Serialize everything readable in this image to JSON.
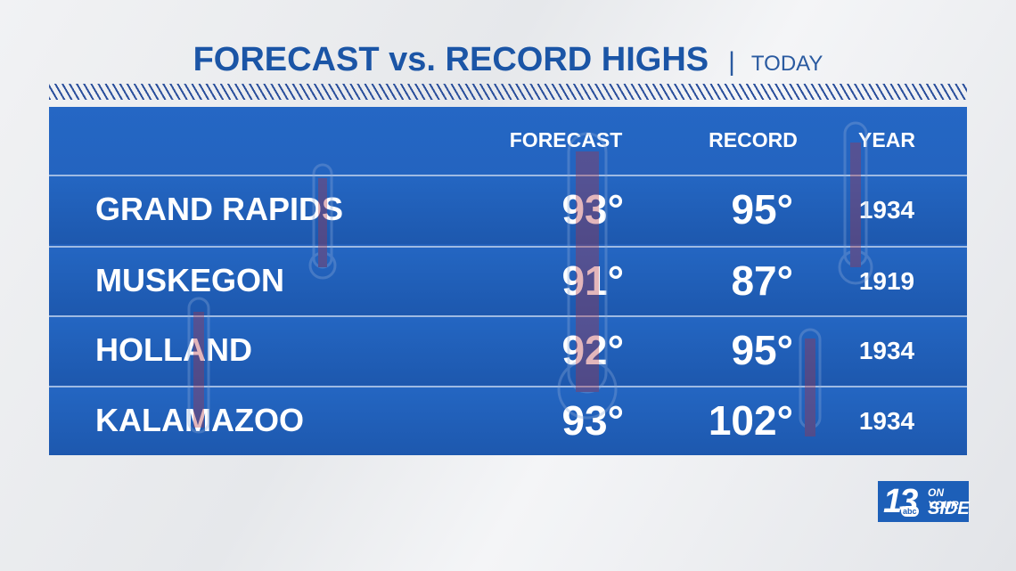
{
  "header": {
    "title": "FORECAST vs. RECORD HIGHS",
    "subtitle": "TODAY"
  },
  "table": {
    "columns": [
      "FORECAST",
      "RECORD",
      "YEAR"
    ],
    "rows": [
      [
        "GRAND RAPIDS",
        "93°",
        "95°",
        "1934"
      ],
      [
        "MUSKEGON",
        "91°",
        "87°",
        "1919"
      ],
      [
        "HOLLAND",
        "92°",
        "95°",
        "1934"
      ],
      [
        "KALAMAZOO",
        "93°",
        "102°",
        "1934"
      ]
    ]
  },
  "logo": {
    "number": "13",
    "network": "abc",
    "line1": "ON YOUR",
    "line2": "SIDE"
  }
}
